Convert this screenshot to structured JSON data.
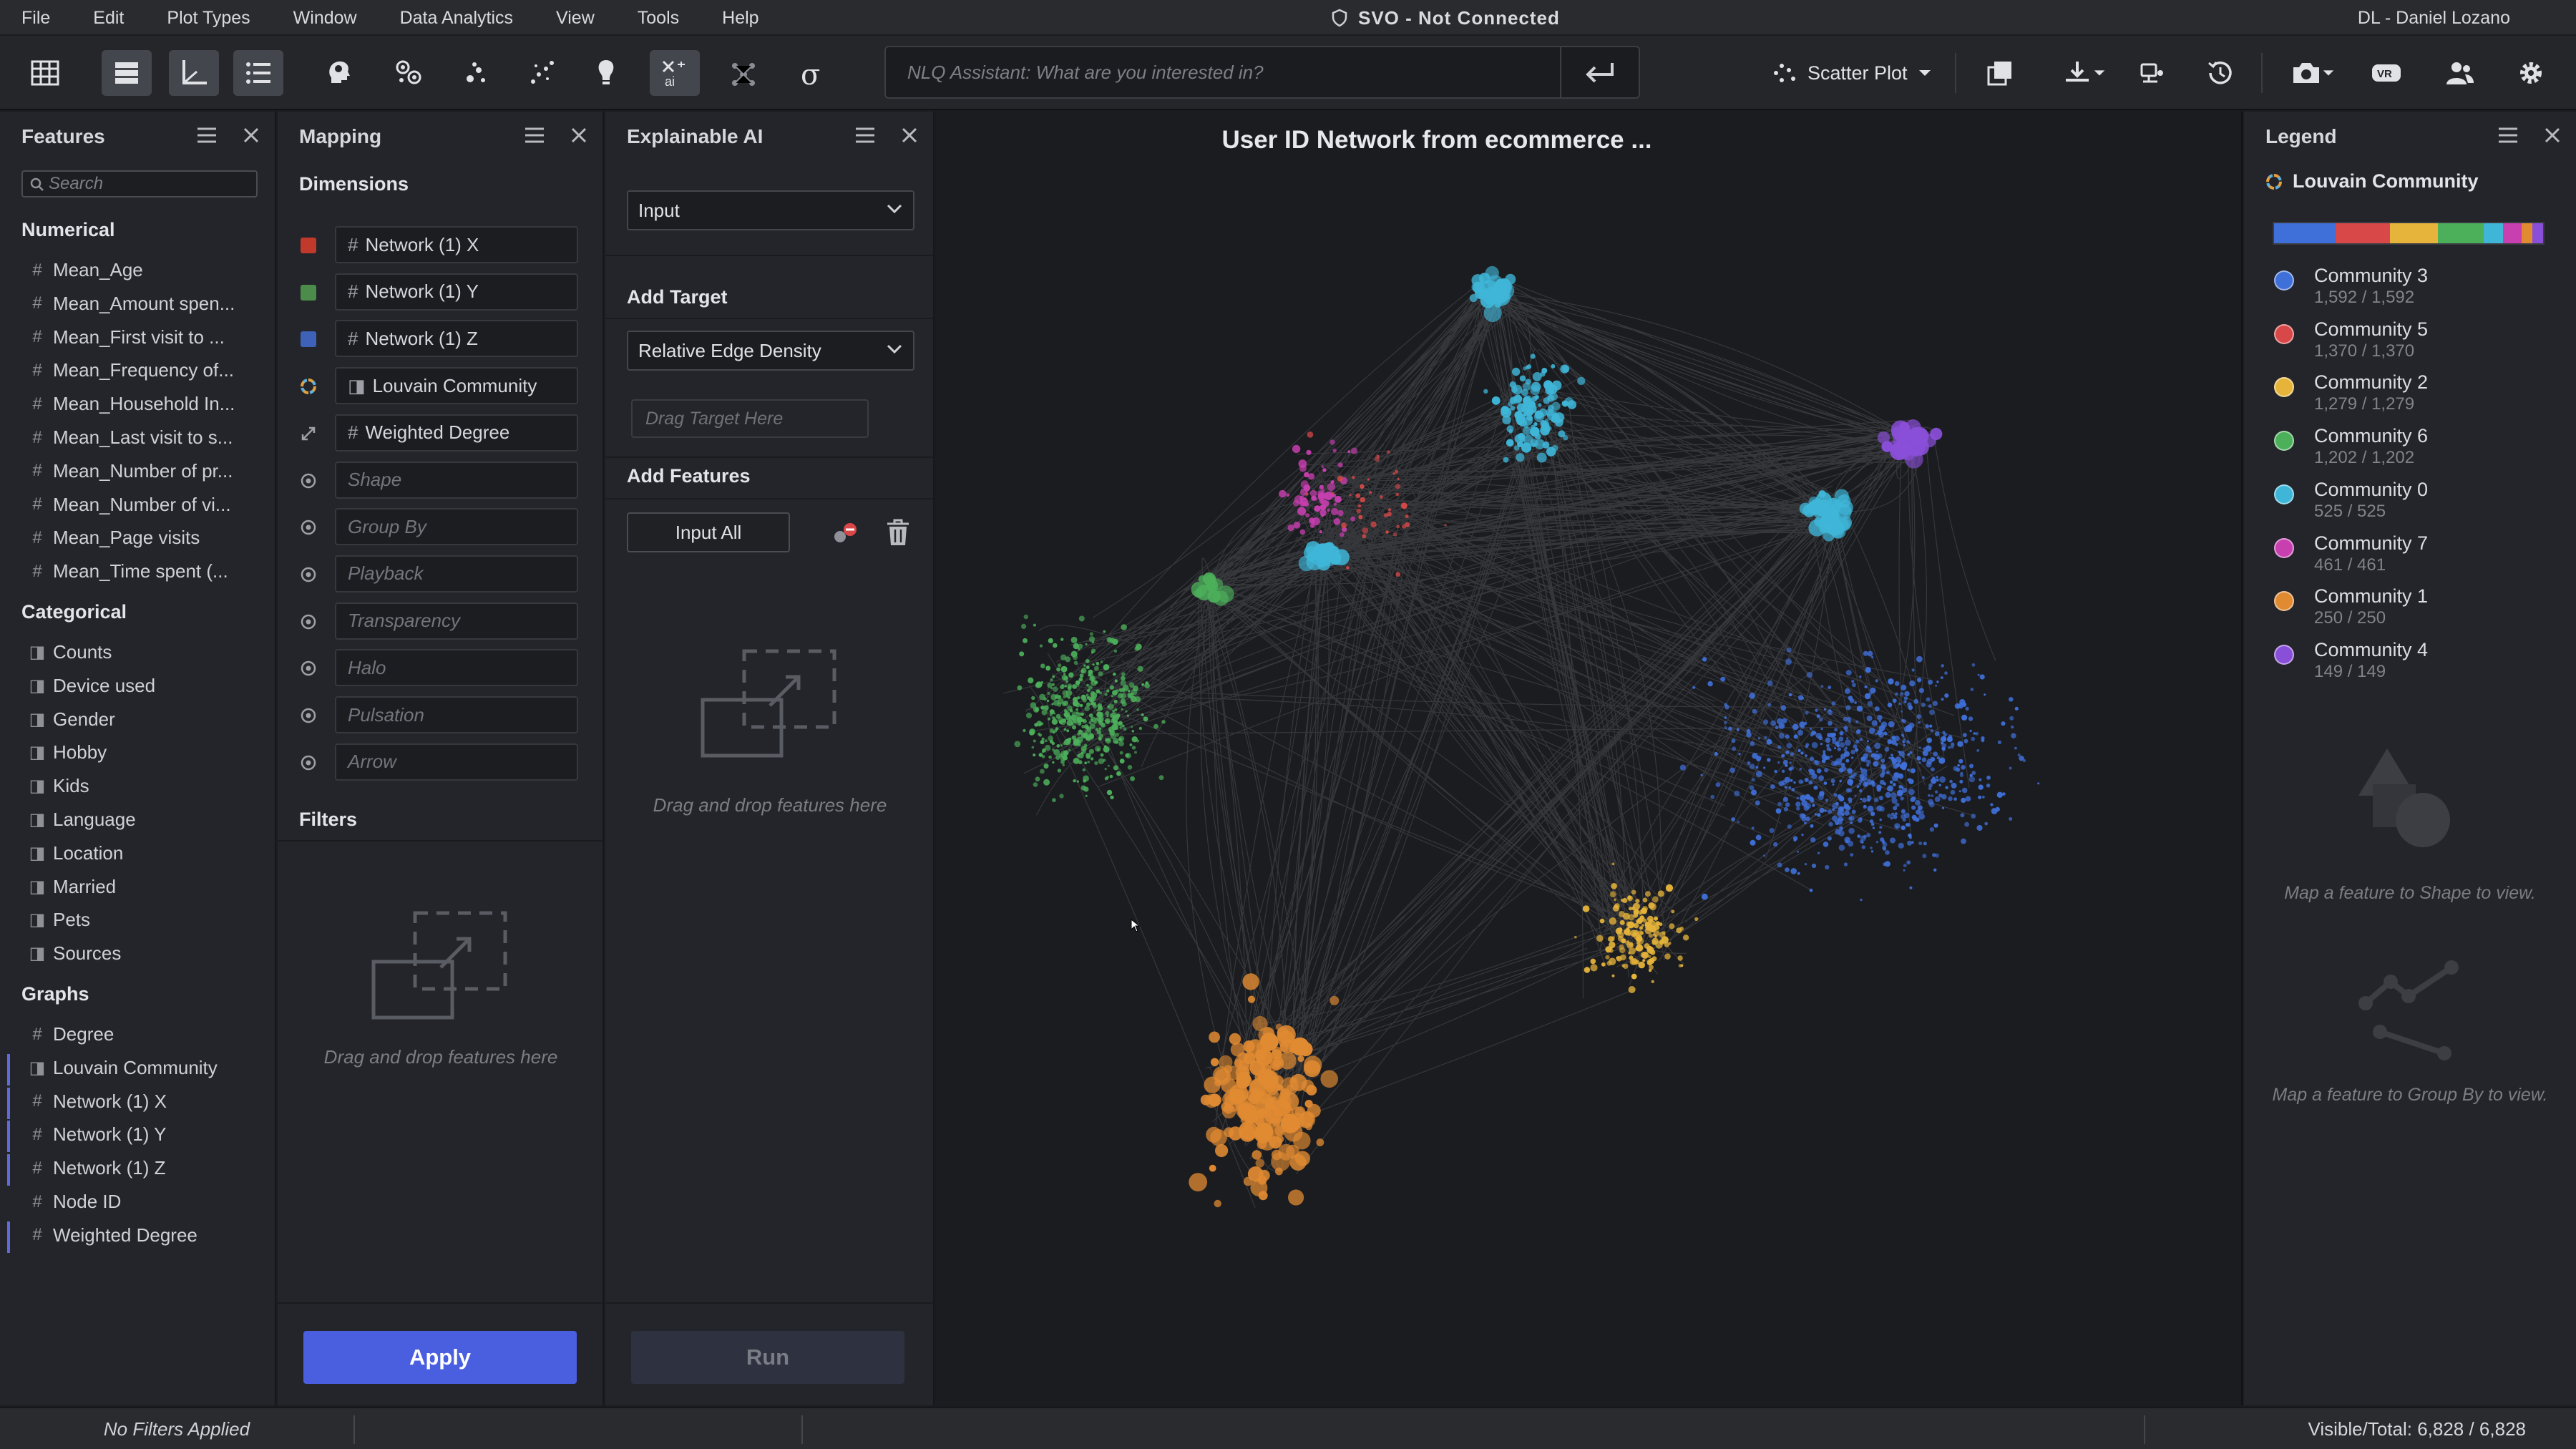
{
  "menu": [
    "File",
    "Edit",
    "Plot Types",
    "Window",
    "Data Analytics",
    "View",
    "Tools",
    "Help"
  ],
  "app_title": "SVO - Not Connected",
  "user": "DL - Daniel Lozano",
  "nlq": {
    "placeholder": "NLQ Assistant: What are you interested in?"
  },
  "plot_type": "Scatter Plot",
  "features": {
    "title": "Features",
    "search_placeholder": "Search",
    "numerical_title": "Numerical",
    "numerical": [
      "Mean_Age",
      "Mean_Amount spen...",
      "Mean_First visit to ...",
      "Mean_Frequency of...",
      "Mean_Household In...",
      "Mean_Last visit to s...",
      "Mean_Number of pr...",
      "Mean_Number of vi...",
      "Mean_Page visits",
      "Mean_Time spent (..."
    ],
    "categorical_title": "Categorical",
    "categorical": [
      "Counts",
      "Device used",
      "Gender",
      "Hobby",
      "Kids",
      "Language",
      "Location",
      "Married",
      "Pets",
      "Sources"
    ],
    "graphs_title": "Graphs",
    "graphs": [
      "Degree",
      "Louvain Community",
      "Network (1) X",
      "Network (1) Y",
      "Network (1) Z",
      "Node ID",
      "Weighted Degree"
    ]
  },
  "mapping": {
    "title": "Mapping",
    "dimensions_title": "Dimensions",
    "dims": [
      {
        "value": "Network (1) X",
        "glyph": "#",
        "icon": "x-axis-icon",
        "color": "#c0392b"
      },
      {
        "value": "Network (1) Y",
        "glyph": "#",
        "icon": "y-axis-icon",
        "color": "#4c8c4a"
      },
      {
        "value": "Network (1) Z",
        "glyph": "#",
        "icon": "z-axis-icon",
        "color": "#3d62b8"
      },
      {
        "value": "Louvain Community",
        "glyph": "◨",
        "icon": "color-icon",
        "color": ""
      },
      {
        "value": "Weighted Degree",
        "glyph": "#",
        "icon": "size-icon",
        "color": ""
      }
    ],
    "empty_dims": [
      "Shape",
      "Group By",
      "Playback",
      "Transparency",
      "Halo",
      "Pulsation",
      "Arrow"
    ],
    "filters_title": "Filters",
    "filters_hint": "Drag and drop features here",
    "apply": "Apply"
  },
  "xai": {
    "title": "Explainable AI",
    "mode": "Input",
    "add_target_title": "Add Target",
    "target": "Relative Edge Density",
    "target_drop": "Drag Target Here",
    "add_features_title": "Add Features",
    "input_all": "Input All",
    "features_hint": "Drag and drop features here",
    "run": "Run"
  },
  "canvas": {
    "title": "User ID Network from ecommerce ..."
  },
  "legend": {
    "title": "Legend",
    "feature": "Louvain Community",
    "communities": [
      {
        "name": "Community 3",
        "count": "1,592 / 1,592",
        "color": "#3f6fd8"
      },
      {
        "name": "Community 5",
        "count": "1,370 / 1,370",
        "color": "#d94848"
      },
      {
        "name": "Community 2",
        "count": "1,279 / 1,279",
        "color": "#e6b43a"
      },
      {
        "name": "Community 6",
        "count": "1,202 / 1,202",
        "color": "#4caf5a"
      },
      {
        "name": "Community 0",
        "count": "525 / 525",
        "color": "#3fb6d8"
      },
      {
        "name": "Community 7",
        "count": "461 / 461",
        "color": "#c83fb0"
      },
      {
        "name": "Community 1",
        "count": "250 / 250",
        "color": "#e08a32"
      },
      {
        "name": "Community 4",
        "count": "149 / 149",
        "color": "#8a4fd8"
      }
    ],
    "shape_hint": "Map a feature to Shape to view.",
    "group_hint": "Map a feature to Group By to view."
  },
  "status": {
    "filters": "No Filters Applied",
    "visible": "Visible/Total: 6,828 / 6,828"
  }
}
